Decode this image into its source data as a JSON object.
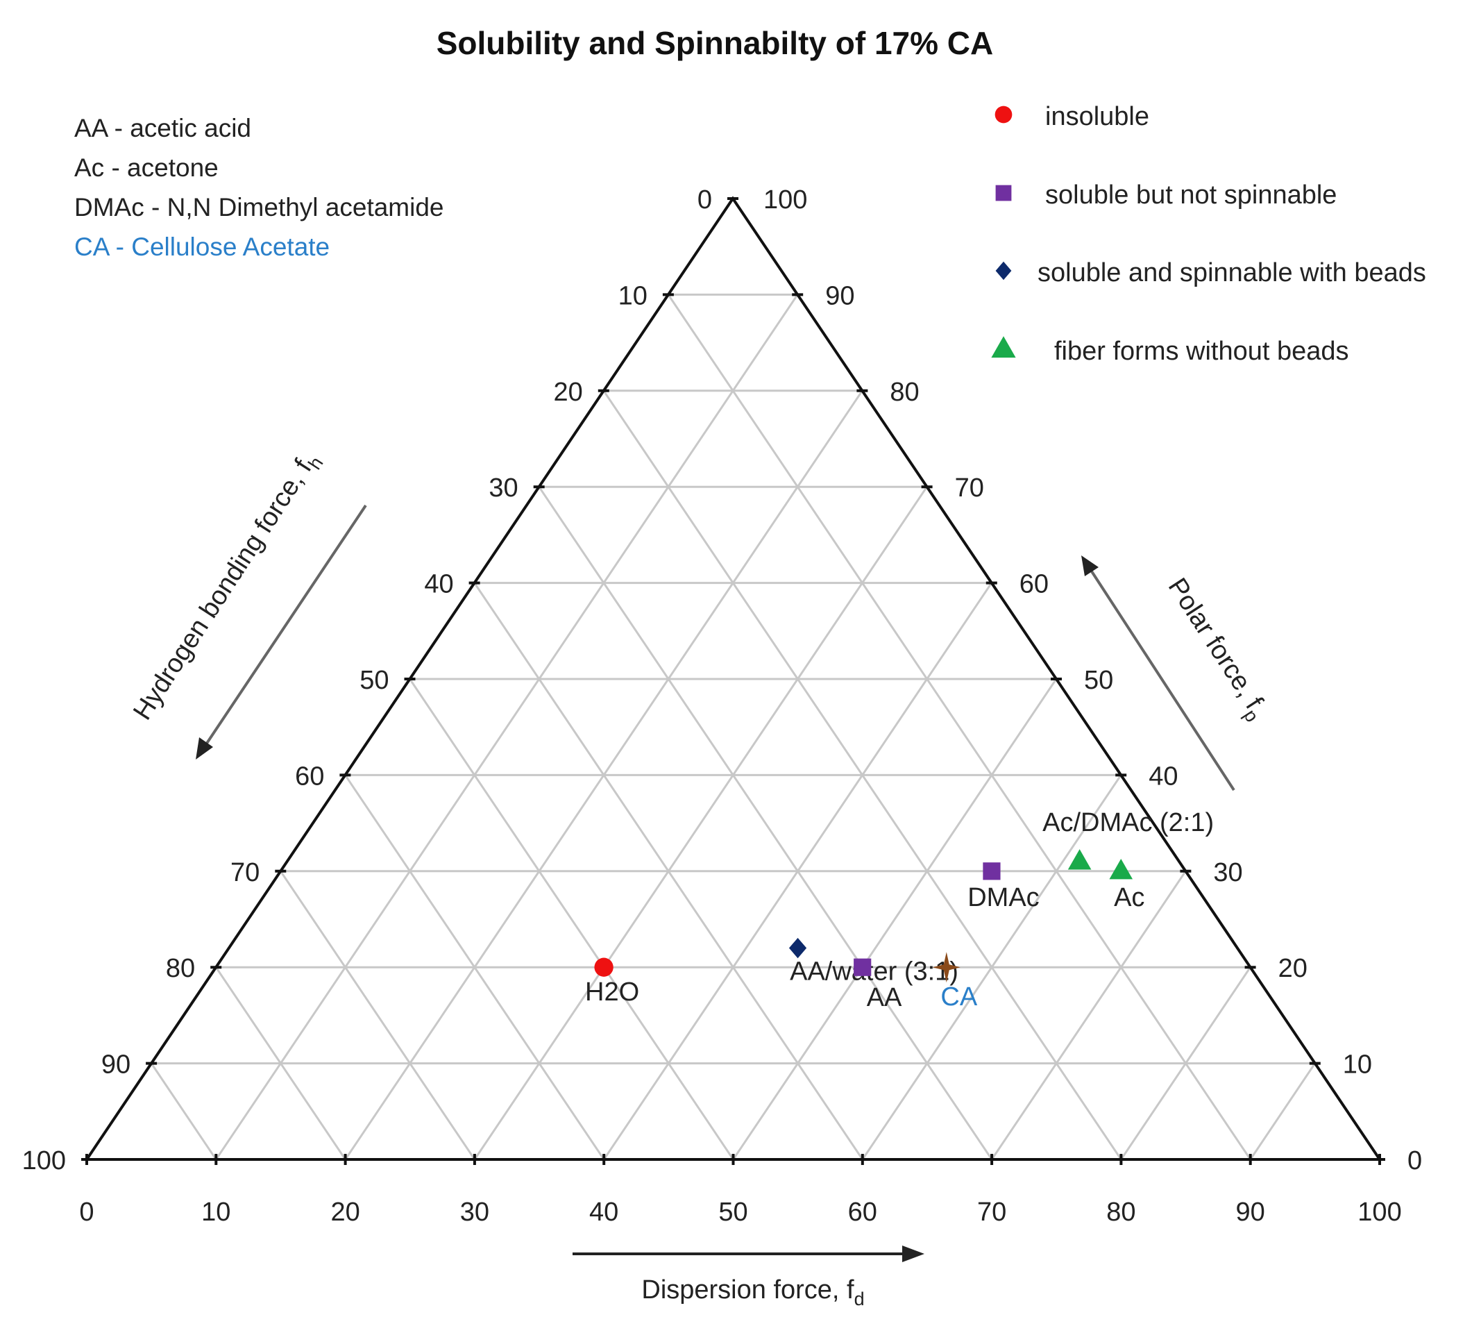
{
  "chart_data": {
    "type": "ternary-scatter",
    "title": "Solubility and Spinnabilty of 17% CA",
    "axes": {
      "bottom": {
        "label": "Dispersion force, f",
        "sub": "d",
        "key": "fd",
        "ticks": [
          0,
          10,
          20,
          30,
          40,
          50,
          60,
          70,
          80,
          90,
          100
        ]
      },
      "right": {
        "label": "Polar force, f",
        "sub": "p",
        "key": "fp",
        "ticks": [
          0,
          10,
          20,
          30,
          40,
          50,
          60,
          70,
          80,
          90,
          100
        ]
      },
      "left": {
        "label": "Hydrogen bonding force, f",
        "sub": "h",
        "key": "fh",
        "ticks": [
          0,
          10,
          20,
          30,
          40,
          50,
          60,
          70,
          80,
          90,
          100
        ]
      }
    },
    "grid": true,
    "grid_step": 10,
    "abbreviations": [
      {
        "text": "AA - acetic acid",
        "color": "#222222"
      },
      {
        "text": "Ac - acetone",
        "color": "#222222"
      },
      {
        "text": "DMAc - N,N Dimethyl acetamide",
        "color": "#222222"
      },
      {
        "text": "CA - Cellulose Acetate",
        "color": "#2a7fc9"
      }
    ],
    "legend": {
      "position": "top-right",
      "items": [
        {
          "label": "insoluble",
          "marker": "circle",
          "color": "#ee1111"
        },
        {
          "label": "soluble but not spinnable",
          "marker": "square",
          "color": "#7030a0"
        },
        {
          "label": "soluble and spinnable with beads",
          "marker": "diamond",
          "color": "#0d2a6b"
        },
        {
          "label": "fiber forms without beads",
          "marker": "triangle",
          "color": "#1aaa4a"
        }
      ]
    },
    "points": [
      {
        "name": "H2O",
        "fd": 30,
        "fp": 20,
        "fh": 50,
        "category": "insoluble",
        "marker": "circle",
        "color": "#ee1111",
        "label_color": "#222222",
        "label_pos": "below"
      },
      {
        "name": "AA/water (3:1)",
        "fd": 44,
        "fp": 22,
        "fh": 34,
        "category": "soluble and spinnable with beads",
        "marker": "diamond",
        "color": "#0d2a6b",
        "label_color": "#222222",
        "label_pos": "below-left"
      },
      {
        "name": "AA",
        "fd": 50,
        "fp": 20,
        "fh": 30,
        "category": "soluble but not spinnable",
        "marker": "square",
        "color": "#7030a0",
        "label_color": "#222222",
        "label_pos": "below-right"
      },
      {
        "name": "DMAc",
        "fd": 55,
        "fp": 30,
        "fh": 15,
        "category": "soluble but not spinnable",
        "marker": "square",
        "color": "#7030a0",
        "label_color": "#222222",
        "label_pos": "below"
      },
      {
        "name": "Ac/DMAc (2:1)",
        "fd": 61.3,
        "fp": 31,
        "fh": 7.7,
        "category": "fiber forms without beads",
        "marker": "triangle",
        "color": "#1aaa4a",
        "label_color": "#222222",
        "label_pos": "above"
      },
      {
        "name": "Ac",
        "fd": 65,
        "fp": 30,
        "fh": 5,
        "category": "fiber forms without beads",
        "marker": "triangle",
        "color": "#1aaa4a",
        "label_color": "#222222",
        "label_pos": "below"
      },
      {
        "name": "CA",
        "fd": 56.5,
        "fp": 20,
        "fh": 23.5,
        "category": "Cellulose Acetate",
        "marker": "star",
        "color": "#8a4a1a",
        "label_color": "#2a7fc9",
        "label_pos": "below-right"
      }
    ]
  }
}
